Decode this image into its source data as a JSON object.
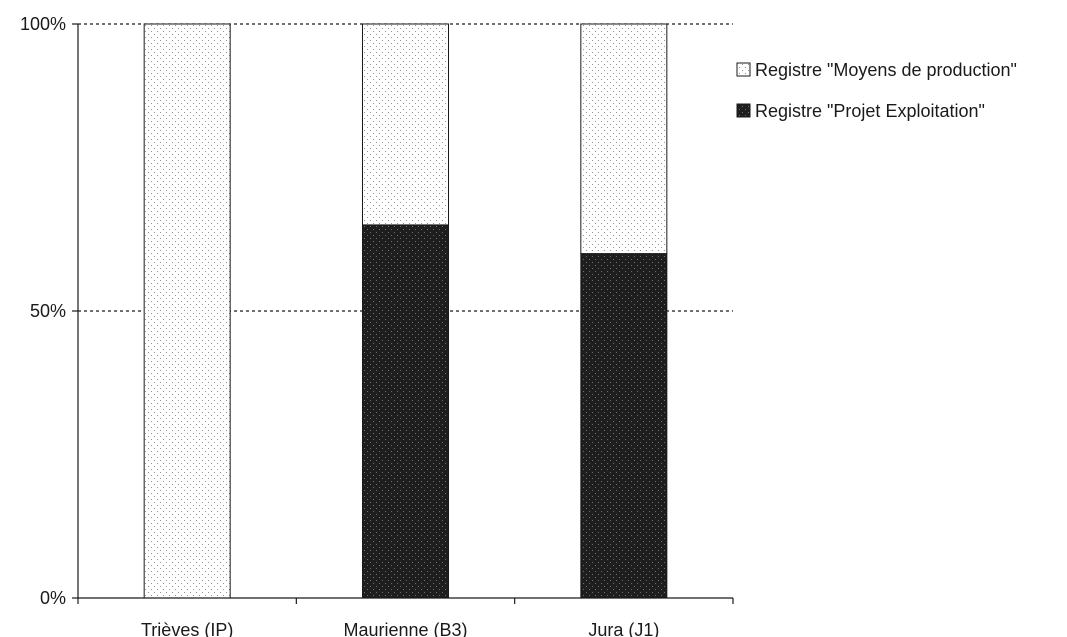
{
  "chart_data": {
    "type": "bar",
    "stacked": true,
    "percent_stacked": true,
    "categories": [
      "Trièves (IP)",
      "Maurienne (B3)",
      "Jura (J1)"
    ],
    "series": [
      {
        "name": "Registre \"Projet Exploitation\"",
        "values": [
          0,
          65,
          60
        ],
        "color": "#1f1f1f",
        "pattern": "dark-dotted"
      },
      {
        "name": "Registre \"Moyens de production\"",
        "values": [
          100,
          35,
          40
        ],
        "color": "#ffffff",
        "pattern": "light-dotted"
      }
    ],
    "legend_order": [
      1,
      0
    ],
    "legend_placement": "top-right",
    "y_ticks": [
      {
        "value": 0,
        "label": "0%"
      },
      {
        "value": 50,
        "label": "50%"
      },
      {
        "value": 100,
        "label": "100%"
      }
    ],
    "ylim": [
      0,
      100
    ],
    "grid": "dotted horizontal at 50% and 100%",
    "title": "",
    "xlabel": "",
    "ylabel": ""
  }
}
